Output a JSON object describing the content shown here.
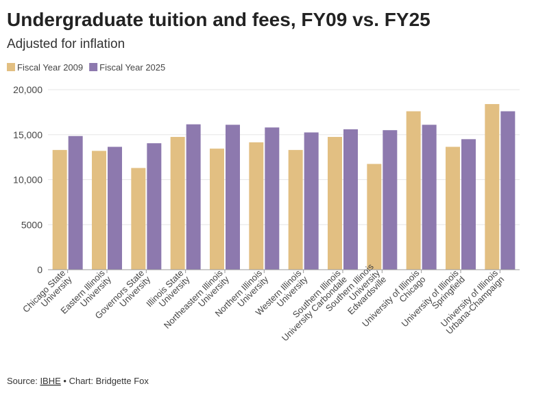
{
  "chart_data": {
    "type": "bar",
    "title": "Undergraduate tuition and fees, FY09 vs. FY25",
    "subtitle": "Adjusted for inflation",
    "categories": [
      "Chicago State\nUniversity",
      "Eastern Illinois\nUniversity",
      "Governors State\nUniversity",
      "Illinois State\nUniversity",
      "Northeastern Illinois\nUniversity",
      "Northern Illinois\nUniversity",
      "Western Illinois\nUniversity",
      "Southern Illinois\nUniversity Carbondale",
      "Southern Illinois\nUniversity\nEdwardsville",
      "University of Illinois\nChicago",
      "University of Illinois\nSpringfield",
      "University of Illinois\nUrbana-Champaign"
    ],
    "series": [
      {
        "name": "Fiscal Year 2009",
        "color": "#e2bf82",
        "values": [
          13300,
          13200,
          11300,
          14750,
          13450,
          14150,
          13300,
          14750,
          11750,
          17600,
          13650,
          18400
        ]
      },
      {
        "name": "Fiscal Year 2025",
        "color": "#8d79ae",
        "values": [
          14850,
          13650,
          14050,
          16150,
          16100,
          15800,
          15250,
          15600,
          15500,
          16100,
          14500,
          17600
        ]
      }
    ],
    "ylim": [
      0,
      20000
    ],
    "yticks": [
      0,
      5000,
      {
        "value": 10000,
        "label": "10,000"
      },
      {
        "value": 15000,
        "label": "15,000"
      },
      {
        "value": 20000,
        "label": "20,000"
      }
    ],
    "grid": true,
    "legend": "top-left",
    "source_label": "Source:",
    "source_link": "IBHE",
    "credit": "• Chart: Bridgette Fox"
  }
}
